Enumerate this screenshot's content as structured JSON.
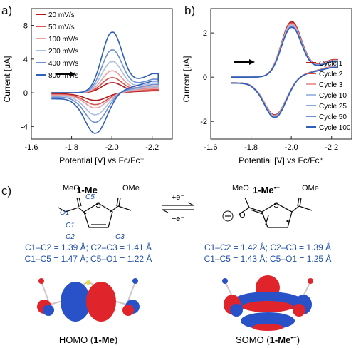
{
  "panels": {
    "a": {
      "label": "a)"
    },
    "b": {
      "label": "b)"
    },
    "c": {
      "label": "c)"
    }
  },
  "colors": {
    "red_dark": "#b31b1b",
    "red_mid": "#d9534f",
    "red_light": "#e8a0a0",
    "blue_light": "#a8bde3",
    "blue_mid": "#6f8fd0",
    "blue_dark": "#2f5fb8",
    "label_blue": "#1f4fa6",
    "orbital_red": "#e0242b",
    "orbital_blue": "#2a52c8"
  },
  "chart_data": [
    {
      "panel": "a",
      "type": "line",
      "xlabel": "Potential [V] vs Fc/Fc⁺",
      "ylabel": "Current [μA]",
      "x_ticks": [
        "-1.6",
        "-1.8",
        "-2.0",
        "-2.2"
      ],
      "y_ticks": [
        "-4",
        "0",
        "4",
        "8"
      ],
      "xlim": [
        -1.6,
        -2.3
      ],
      "ylim": [
        -5.5,
        10
      ],
      "legend_position": "top-left",
      "series": [
        {
          "name": "20 mV/s",
          "color": "#b31b1b",
          "peak_cathodic": 1.2,
          "peak_anodic": -0.9
        },
        {
          "name": "50 mV/s",
          "color": "#d9534f",
          "peak_cathodic": 1.8,
          "peak_anodic": -1.4
        },
        {
          "name": "100 mV/s",
          "color": "#e8a0a0",
          "peak_cathodic": 2.6,
          "peak_anodic": -1.8
        },
        {
          "name": "200 mV/s",
          "color": "#a8bde3",
          "peak_cathodic": 3.7,
          "peak_anodic": -2.6
        },
        {
          "name": "400 mV/s",
          "color": "#6f8fd0",
          "peak_cathodic": 5.1,
          "peak_anodic": -3.5
        },
        {
          "name": "800 mV/s",
          "color": "#2f5fb8",
          "peak_cathodic": 7.2,
          "peak_anodic": -4.8
        }
      ]
    },
    {
      "panel": "b",
      "type": "line",
      "xlabel": "Potential [V] vs Fc/Fc⁺",
      "ylabel": "Current [μA]",
      "x_ticks": [
        "-1.6",
        "-1.8",
        "-2.0",
        "-2.2"
      ],
      "y_ticks": [
        "-2",
        "0",
        "2"
      ],
      "xlim": [
        -1.6,
        -2.3
      ],
      "ylim": [
        -2.8,
        3.1
      ],
      "legend_position": "bottom-right",
      "series": [
        {
          "name": "Cycle 1",
          "color": "#b31b1b",
          "peak_cathodic": 2.5,
          "peak_anodic": -1.7
        },
        {
          "name": "Cycle 2",
          "color": "#d9534f",
          "peak_cathodic": 2.45,
          "peak_anodic": -1.72
        },
        {
          "name": "Cycle 3",
          "color": "#e8a0a0",
          "peak_cathodic": 2.4,
          "peak_anodic": -1.74
        },
        {
          "name": "Cycle 10",
          "color": "#a8bde3",
          "peak_cathodic": 2.35,
          "peak_anodic": -1.76
        },
        {
          "name": "Cycle 25",
          "color": "#8aa6da",
          "peak_cathodic": 2.3,
          "peak_anodic": -1.78
        },
        {
          "name": "Cycle 50",
          "color": "#6f8fd0",
          "peak_cathodic": 2.28,
          "peak_anodic": -1.8
        },
        {
          "name": "Cycle 100",
          "color": "#2f5fb8",
          "peak_cathodic": 2.25,
          "peak_anodic": -1.82
        }
      ]
    }
  ],
  "scheme": {
    "left_title_main": "1-Me",
    "right_title_main": "1-Me",
    "right_title_sup": "•−",
    "reaction_forward": "+e⁻",
    "reaction_backward": "−e⁻",
    "left_groups": {
      "ome1": "MeO",
      "ome2": "OMe"
    },
    "right_groups": {
      "ome1": "MeO",
      "ome2": "OMe"
    },
    "atom_labels": {
      "o1": "O1",
      "c5": "C5",
      "c1": "C1",
      "c2": "C2",
      "c3": "C3"
    },
    "atom_s": "S",
    "left_bonds_1": "C1–C2 = 1.39 Å; C2–C3 = 1.41 Å",
    "left_bonds_2": "C1–C5 = 1.47 Å; C5–O1 = 1.22 Å",
    "right_bonds_1": "C1–C2 = 1.42 Å; C2–C3 = 1.39 Å",
    "right_bonds_2": "C1–C5 = 1.43 Å; C5–O1 = 1.25 Å",
    "homo_prefix": "HOMO (",
    "homo_bold": "1-Me",
    "homo_suffix": ")",
    "somo_prefix": "SOMO (",
    "somo_bold": "1-Me",
    "somo_sup": "•−",
    "somo_suffix": ")"
  }
}
